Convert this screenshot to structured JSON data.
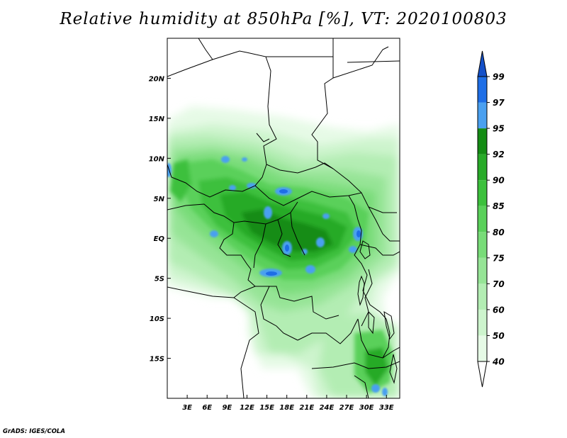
{
  "title": "Relative humidity at 850hPa [%], VT: 2020100803",
  "credit": "GrADS: IGES/COLA",
  "chart_data": {
    "type": "heatmap",
    "variable": "Relative humidity at 850hPa [%]",
    "valid_time": "2020100803",
    "x_ticks": [
      "3E",
      "6E",
      "9E",
      "12E",
      "15E",
      "18E",
      "21E",
      "24E",
      "27E",
      "30E",
      "33E"
    ],
    "y_ticks": [
      "20N",
      "15N",
      "10N",
      "5N",
      "EQ",
      "5S",
      "10S",
      "15S"
    ],
    "lon_range": [
      0,
      35
    ],
    "lat_range": [
      -20,
      25
    ],
    "colorbar": {
      "levels": [
        "40",
        "50",
        "60",
        "70",
        "75",
        "80",
        "85",
        "90",
        "92",
        "95",
        "97",
        "99"
      ],
      "colors": [
        "#ffffff",
        "#e6fae6",
        "#cdf4cd",
        "#b3edb3",
        "#96e496",
        "#78dc78",
        "#5ad05a",
        "#3cc03c",
        "#28aa28",
        "#148c14",
        "#4aa0f0",
        "#1e6ee6",
        "#1450c8"
      ]
    }
  }
}
